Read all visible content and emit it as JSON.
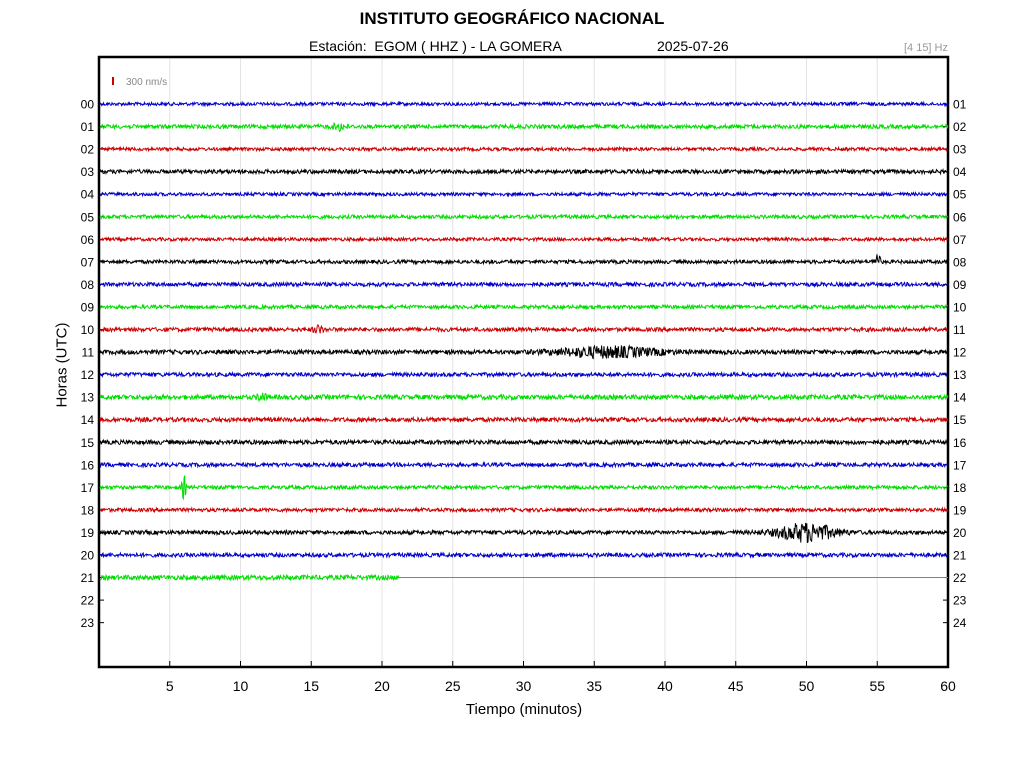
{
  "header": {
    "title": "INSTITUTO GEOGRÁFICO NACIONAL",
    "station": "Estación:  EGOM ( HHZ ) - LA GOMERA",
    "date": "2025-07-26",
    "band": "[4 15] Hz"
  },
  "chart_data": {
    "type": "line",
    "title": "INSTITUTO GEOGRÁFICO NACIONAL",
    "xlabel": "Tiempo (minutos)",
    "ylabel": "Horas (UTC)",
    "xlim": [
      0,
      60
    ],
    "x_ticks": [
      "5",
      "10",
      "15",
      "20",
      "25",
      "30",
      "35",
      "40",
      "45",
      "50",
      "55",
      "60"
    ],
    "left_hour_labels": [
      "00",
      "01",
      "02",
      "03",
      "04",
      "05",
      "06",
      "07",
      "08",
      "09",
      "10",
      "11",
      "12",
      "13",
      "14",
      "15",
      "16",
      "17",
      "18",
      "19",
      "20",
      "21",
      "22",
      "23"
    ],
    "right_hour_labels": [
      "01",
      "02",
      "03",
      "04",
      "05",
      "06",
      "07",
      "08",
      "09",
      "10",
      "11",
      "12",
      "13",
      "14",
      "15",
      "16",
      "17",
      "18",
      "19",
      "20",
      "21",
      "22",
      "23",
      "24"
    ],
    "scale_bar_label": "300 nm/s",
    "scale_bar_color": "#cc0000",
    "grid": true,
    "trace_colors": [
      "#0000cc",
      "#00dd00",
      "#cc0000",
      "#000000"
    ],
    "series": [
      {
        "hour": "00",
        "noise": 0.18,
        "end_minute": 60,
        "events": []
      },
      {
        "hour": "01",
        "noise": 0.22,
        "end_minute": 60,
        "events": [
          {
            "minute": 17,
            "amp": 0.4,
            "width": 0.6
          }
        ]
      },
      {
        "hour": "02",
        "noise": 0.18,
        "end_minute": 60,
        "events": []
      },
      {
        "hour": "03",
        "noise": 0.22,
        "end_minute": 60,
        "events": []
      },
      {
        "hour": "04",
        "noise": 0.18,
        "end_minute": 60,
        "events": []
      },
      {
        "hour": "05",
        "noise": 0.2,
        "end_minute": 60,
        "events": []
      },
      {
        "hour": "06",
        "noise": 0.18,
        "end_minute": 60,
        "events": []
      },
      {
        "hour": "07",
        "noise": 0.2,
        "end_minute": 60,
        "events": [
          {
            "minute": 55,
            "amp": 1.3,
            "width": 0.25
          }
        ]
      },
      {
        "hour": "08",
        "noise": 0.22,
        "end_minute": 60,
        "events": []
      },
      {
        "hour": "09",
        "noise": 0.2,
        "end_minute": 60,
        "events": []
      },
      {
        "hour": "10",
        "noise": 0.22,
        "end_minute": 60,
        "events": [
          {
            "minute": 15.5,
            "amp": 0.4,
            "width": 0.5
          }
        ]
      },
      {
        "hour": "11",
        "noise": 0.24,
        "end_minute": 60,
        "events": [
          {
            "minute": 36,
            "amp": 0.55,
            "width": 5
          }
        ]
      },
      {
        "hour": "12",
        "noise": 0.22,
        "end_minute": 60,
        "events": []
      },
      {
        "hour": "13",
        "noise": 0.26,
        "end_minute": 60,
        "events": [
          {
            "minute": 11.5,
            "amp": 0.45,
            "width": 0.4
          }
        ]
      },
      {
        "hour": "14",
        "noise": 0.24,
        "end_minute": 60,
        "events": []
      },
      {
        "hour": "15",
        "noise": 0.24,
        "end_minute": 60,
        "events": []
      },
      {
        "hour": "16",
        "noise": 0.22,
        "end_minute": 60,
        "events": []
      },
      {
        "hour": "17",
        "noise": 0.2,
        "end_minute": 60,
        "events": [
          {
            "minute": 6,
            "amp": 1.3,
            "width": 0.2
          }
        ]
      },
      {
        "hour": "18",
        "noise": 0.2,
        "end_minute": 60,
        "events": []
      },
      {
        "hour": "19",
        "noise": 0.22,
        "end_minute": 60,
        "events": [
          {
            "minute": 50,
            "amp": 1.0,
            "width": 2.8
          }
        ]
      },
      {
        "hour": "20",
        "noise": 0.22,
        "end_minute": 60,
        "events": []
      },
      {
        "hour": "21",
        "noise": 0.26,
        "end_minute": 21.2,
        "events": []
      }
    ]
  }
}
